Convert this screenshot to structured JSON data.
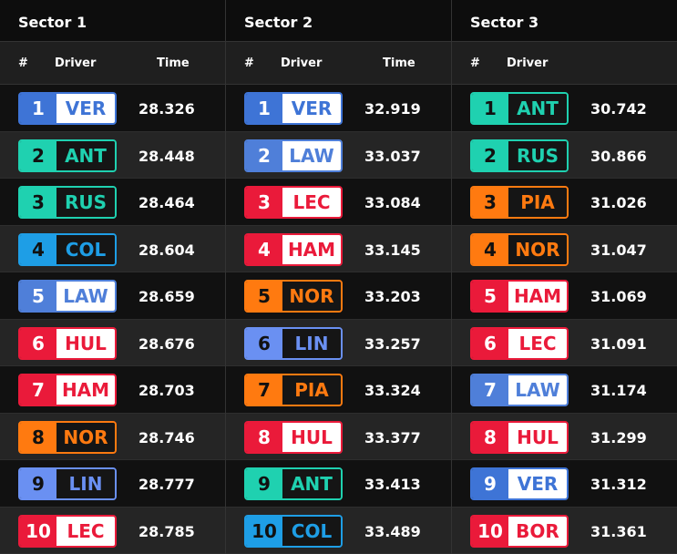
{
  "sectors": [
    {
      "title": "Sector 1",
      "headers": [
        "#",
        "Driver",
        "Time"
      ],
      "rows": [
        {
          "pos": "1",
          "driver": "VER",
          "time": "28.326",
          "color": "#3e74d6",
          "style": "light"
        },
        {
          "pos": "2",
          "driver": "ANT",
          "time": "28.448",
          "color": "#1fd1b0",
          "style": "dark"
        },
        {
          "pos": "3",
          "driver": "RUS",
          "time": "28.464",
          "color": "#1fd1b0",
          "style": "dark"
        },
        {
          "pos": "4",
          "driver": "COL",
          "time": "28.604",
          "color": "#1e9ee6",
          "style": "dark"
        },
        {
          "pos": "5",
          "driver": "LAW",
          "time": "28.659",
          "color": "#4f7fd9",
          "style": "light"
        },
        {
          "pos": "6",
          "driver": "HUL",
          "time": "28.676",
          "color": "#ea1a3a",
          "style": "light"
        },
        {
          "pos": "7",
          "driver": "HAM",
          "time": "28.703",
          "color": "#ea1a3a",
          "style": "light"
        },
        {
          "pos": "8",
          "driver": "NOR",
          "time": "28.746",
          "color": "#ff7a10",
          "style": "dark"
        },
        {
          "pos": "9",
          "driver": "LIN",
          "time": "28.777",
          "color": "#6a90f2",
          "style": "dark"
        },
        {
          "pos": "10",
          "driver": "LEC",
          "time": "28.785",
          "color": "#ea1a3a",
          "style": "light"
        }
      ]
    },
    {
      "title": "Sector 2",
      "headers": [
        "#",
        "Driver",
        "Time"
      ],
      "rows": [
        {
          "pos": "1",
          "driver": "VER",
          "time": "32.919",
          "color": "#3e74d6",
          "style": "light"
        },
        {
          "pos": "2",
          "driver": "LAW",
          "time": "33.037",
          "color": "#4f7fd9",
          "style": "light"
        },
        {
          "pos": "3",
          "driver": "LEC",
          "time": "33.084",
          "color": "#ea1a3a",
          "style": "light"
        },
        {
          "pos": "4",
          "driver": "HAM",
          "time": "33.145",
          "color": "#ea1a3a",
          "style": "light"
        },
        {
          "pos": "5",
          "driver": "NOR",
          "time": "33.203",
          "color": "#ff7a10",
          "style": "dark"
        },
        {
          "pos": "6",
          "driver": "LIN",
          "time": "33.257",
          "color": "#6a90f2",
          "style": "dark"
        },
        {
          "pos": "7",
          "driver": "PIA",
          "time": "33.324",
          "color": "#ff7a10",
          "style": "dark"
        },
        {
          "pos": "8",
          "driver": "HUL",
          "time": "33.377",
          "color": "#ea1a3a",
          "style": "light"
        },
        {
          "pos": "9",
          "driver": "ANT",
          "time": "33.413",
          "color": "#1fd1b0",
          "style": "dark"
        },
        {
          "pos": "10",
          "driver": "COL",
          "time": "33.489",
          "color": "#1e9ee6",
          "style": "dark"
        }
      ]
    },
    {
      "title": "Sector 3",
      "headers": [
        "#",
        "Driver"
      ],
      "rows": [
        {
          "pos": "1",
          "driver": "ANT",
          "time": "30.742",
          "color": "#1fd1b0",
          "style": "dark"
        },
        {
          "pos": "2",
          "driver": "RUS",
          "time": "30.866",
          "color": "#1fd1b0",
          "style": "dark"
        },
        {
          "pos": "3",
          "driver": "PIA",
          "time": "31.026",
          "color": "#ff7a10",
          "style": "dark"
        },
        {
          "pos": "4",
          "driver": "NOR",
          "time": "31.047",
          "color": "#ff7a10",
          "style": "dark"
        },
        {
          "pos": "5",
          "driver": "HAM",
          "time": "31.069",
          "color": "#ea1a3a",
          "style": "light"
        },
        {
          "pos": "6",
          "driver": "LEC",
          "time": "31.091",
          "color": "#ea1a3a",
          "style": "light"
        },
        {
          "pos": "7",
          "driver": "LAW",
          "time": "31.174",
          "color": "#4f7fd9",
          "style": "light"
        },
        {
          "pos": "8",
          "driver": "HUL",
          "time": "31.299",
          "color": "#ea1a3a",
          "style": "light"
        },
        {
          "pos": "9",
          "driver": "VER",
          "time": "31.312",
          "color": "#3e74d6",
          "style": "light"
        },
        {
          "pos": "10",
          "driver": "BOR",
          "time": "31.361",
          "color": "#ea1a3a",
          "style": "light"
        }
      ]
    }
  ]
}
